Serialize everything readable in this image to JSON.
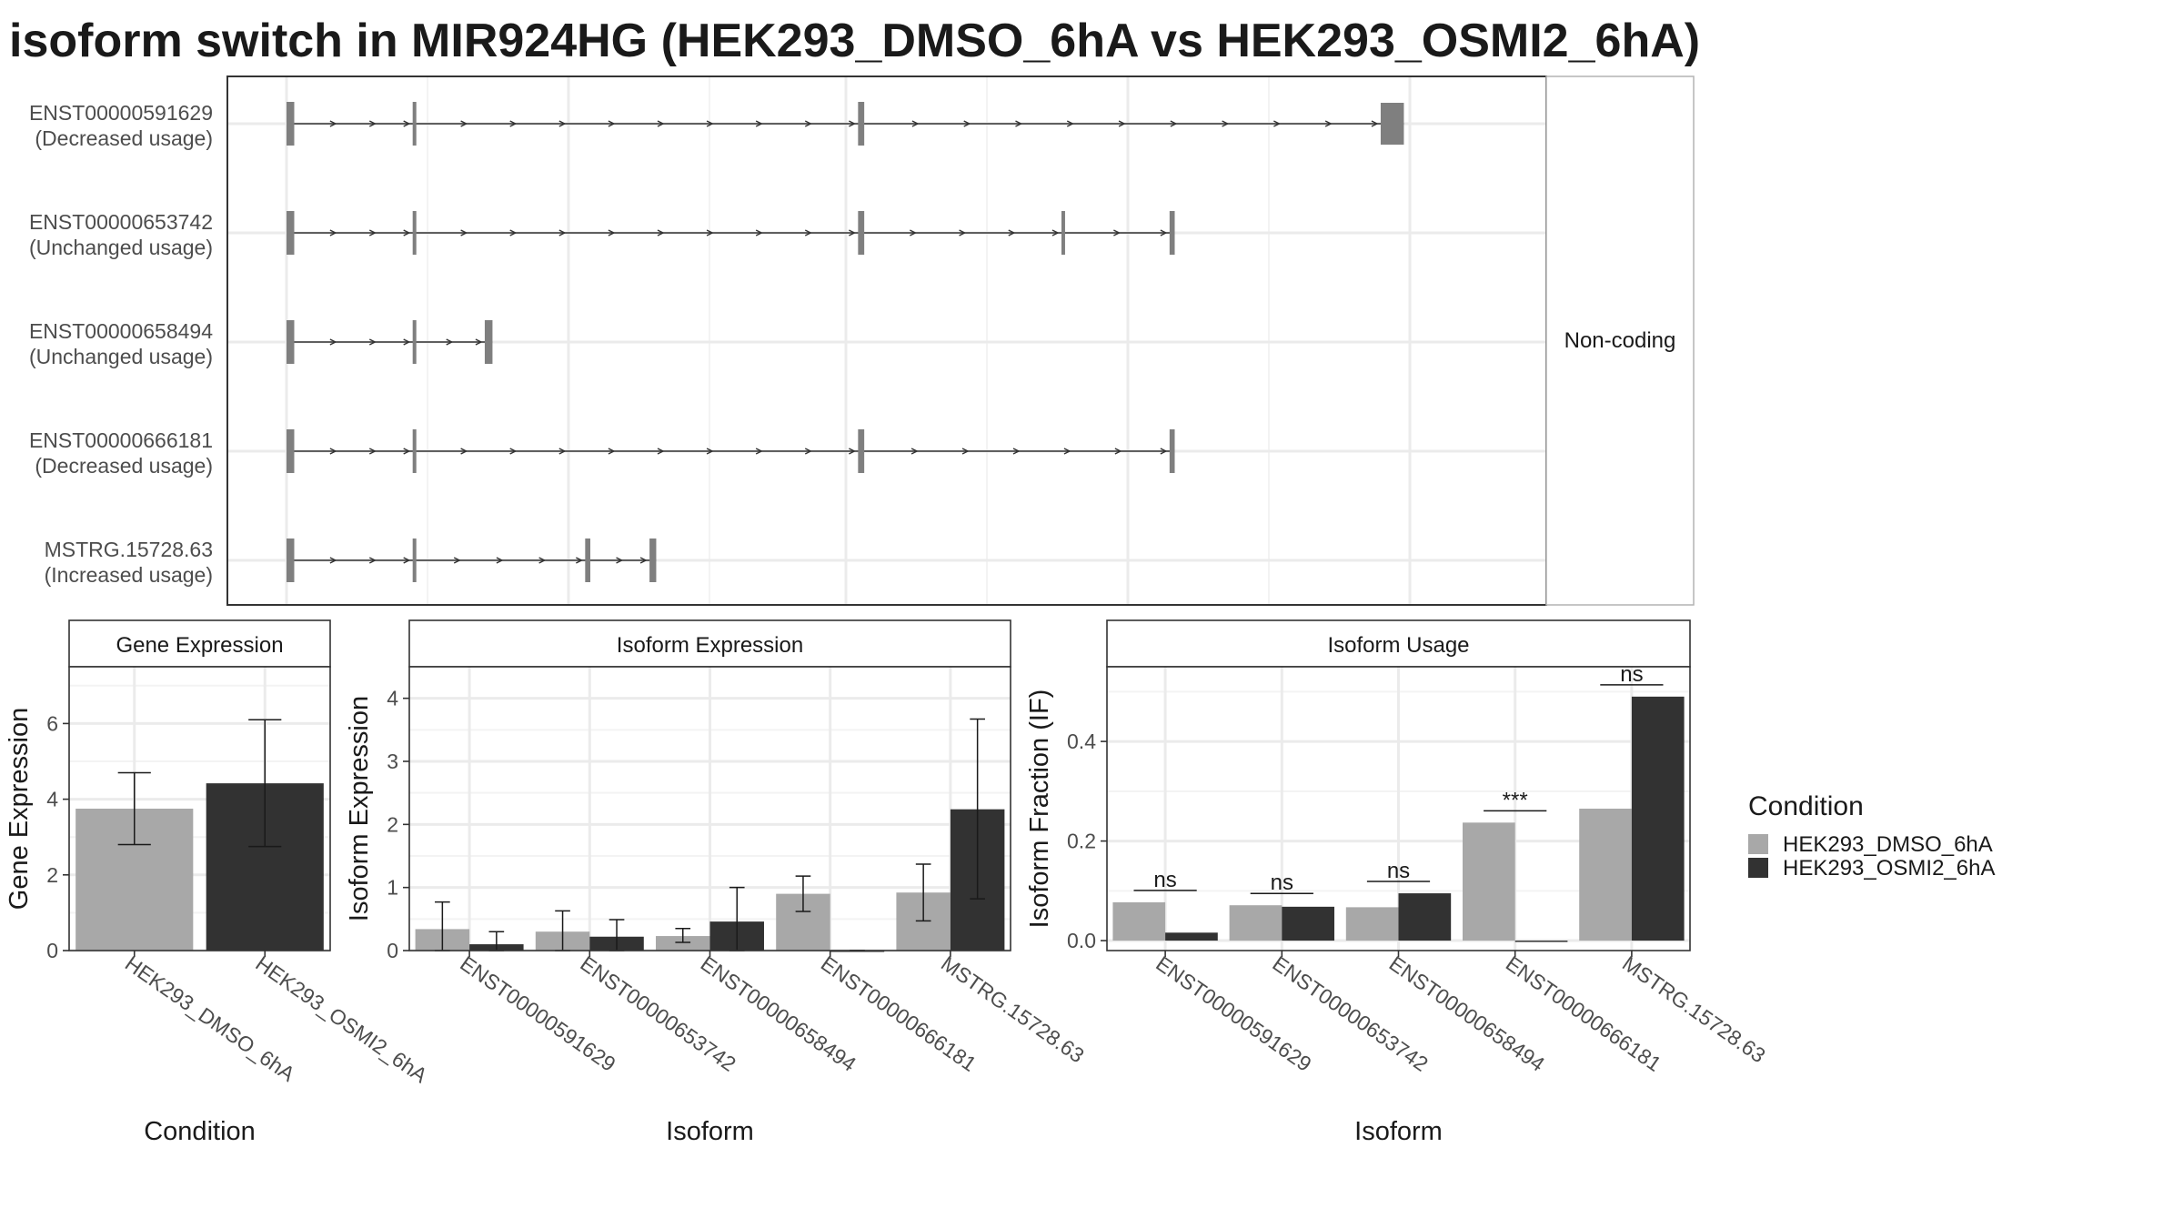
{
  "title": "isoform switch in MIR924HG (HEK293_DMSO_6hA vs HEK293_OSMI2_6hA)",
  "colors": {
    "dmso": "#a8a8a8",
    "osmi": "#323232",
    "exon": "#7f7f7f"
  },
  "transcripts": {
    "strip_label": "Non-coding",
    "x_range": [
      0,
      2300
    ],
    "items": [
      {
        "id": "ENST00000591629",
        "usage": "(Decreased usage)",
        "exons": [
          [
            0,
            15
          ],
          [
            245,
            250
          ],
          [
            1110,
            1122
          ],
          [
            2125,
            2170
          ]
        ]
      },
      {
        "id": "ENST00000653742",
        "usage": "(Unchanged usage)",
        "exons": [
          [
            0,
            15
          ],
          [
            245,
            250
          ],
          [
            1110,
            1122
          ],
          [
            1505,
            1512
          ],
          [
            1715,
            1725
          ]
        ]
      },
      {
        "id": "ENST00000658494",
        "usage": "(Unchanged usage)",
        "exons": [
          [
            0,
            15
          ],
          [
            245,
            250
          ],
          [
            385,
            400
          ]
        ]
      },
      {
        "id": "ENST00000666181",
        "usage": "(Decreased usage)",
        "exons": [
          [
            0,
            15
          ],
          [
            245,
            250
          ],
          [
            1110,
            1122
          ],
          [
            1715,
            1725
          ]
        ]
      },
      {
        "id": "MSTRG.15728.63",
        "usage": "(Increased usage)",
        "exons": [
          [
            0,
            15
          ],
          [
            245,
            250
          ],
          [
            580,
            590
          ],
          [
            705,
            718
          ]
        ]
      }
    ]
  },
  "chart_data": [
    {
      "type": "bar",
      "title": "Gene Expression",
      "xlabel": "Condition",
      "ylabel": "Gene Expression",
      "ylim": [
        0,
        7.5
      ],
      "yticks": [
        "0",
        "2",
        "4",
        "6"
      ],
      "categories": [
        "HEK293_DMSO_6hA",
        "HEK293_OSMI2_6hA"
      ],
      "values": [
        3.75,
        4.42
      ],
      "error_low": [
        2.8,
        2.75
      ],
      "error_high": [
        4.7,
        6.1
      ]
    },
    {
      "type": "bar",
      "title": "Isoform Expression",
      "xlabel": "Isoform",
      "ylabel": "Isoform Expression",
      "ylim": [
        0,
        4.5
      ],
      "yticks": [
        "0",
        "1",
        "2",
        "3",
        "4"
      ],
      "categories": [
        "ENST00000591629",
        "ENST00000653742",
        "ENST00000658494",
        "ENST00000666181",
        "MSTRG.15728.63"
      ],
      "series": [
        {
          "name": "HEK293_DMSO_6hA",
          "values": [
            0.34,
            0.3,
            0.23,
            0.9,
            0.92
          ],
          "error_low": [
            0.0,
            0.0,
            0.13,
            0.62,
            0.47
          ],
          "error_high": [
            0.77,
            0.63,
            0.35,
            1.18,
            1.37
          ]
        },
        {
          "name": "HEK293_OSMI2_6hA",
          "values": [
            0.1,
            0.22,
            0.46,
            0.0,
            2.24
          ],
          "error_low": [
            0.0,
            0.0,
            0.0,
            0.0,
            0.82
          ],
          "error_high": [
            0.3,
            0.49,
            1.0,
            0.0,
            3.67
          ]
        }
      ]
    },
    {
      "type": "bar",
      "title": "Isoform Usage",
      "xlabel": "Isoform",
      "ylabel": "Isoform Fraction (IF)",
      "ylim": [
        -0.02,
        0.55
      ],
      "yticks": [
        "0.0",
        "0.2",
        "0.4"
      ],
      "categories": [
        "ENST00000591629",
        "ENST00000653742",
        "ENST00000658494",
        "ENST00000666181",
        "MSTRG.15728.63"
      ],
      "series": [
        {
          "name": "HEK293_DMSO_6hA",
          "values": [
            0.077,
            0.071,
            0.067,
            0.237,
            0.265
          ]
        },
        {
          "name": "HEK293_OSMI2_6hA",
          "values": [
            0.016,
            0.068,
            0.095,
            0.0,
            0.49
          ]
        }
      ],
      "significance": [
        "ns",
        "ns",
        "ns",
        "***",
        "ns"
      ]
    }
  ],
  "legend": {
    "title": "Condition",
    "items": [
      {
        "label": "HEK293_DMSO_6hA",
        "color": "#a8a8a8"
      },
      {
        "label": "HEK293_OSMI2_6hA",
        "color": "#323232"
      }
    ]
  }
}
